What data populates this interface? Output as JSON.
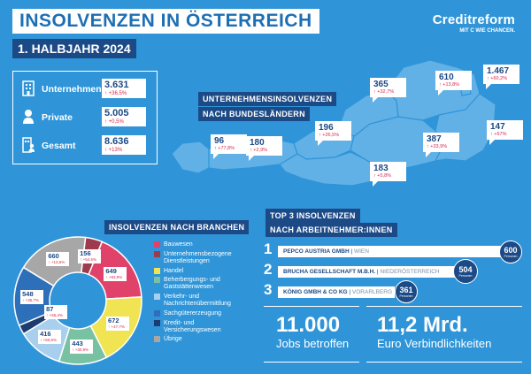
{
  "header": {
    "title": "INSOLVENZEN IN ÖSTERREICH",
    "subtitle": "1. HALBJAHR 2024"
  },
  "logo": {
    "name": "Creditreform",
    "tagline": "MIT C WIE CHANCEN."
  },
  "stats": [
    {
      "label": "Unternehmen",
      "value": "3.631",
      "change": "+36,5%",
      "icon": "building-icon"
    },
    {
      "label": "Private",
      "value": "5.005",
      "change": "+0,5%",
      "icon": "person-icon"
    },
    {
      "label": "Gesamt",
      "value": "8.636",
      "change": "+13%",
      "icon": "building-person-icon"
    }
  ],
  "map": {
    "heading_line1": "UNTERNEHMENSINSOLVENZEN",
    "heading_line2": "NACH BUNDESLÄNDERN",
    "regions": [
      {
        "value": "96",
        "change": "+77,8%"
      },
      {
        "value": "180",
        "change": "+2,9%"
      },
      {
        "value": "196",
        "change": "+26,5%"
      },
      {
        "value": "365",
        "change": "+32,7%"
      },
      {
        "value": "610",
        "change": "+13,8%"
      },
      {
        "value": "1.467",
        "change": "+60,2%"
      },
      {
        "value": "147",
        "change": "+67%"
      },
      {
        "value": "387",
        "change": "+33,9%"
      },
      {
        "value": "183",
        "change": "+5,8%"
      }
    ]
  },
  "branchen": {
    "heading": "INSOLVENZEN NACH BRANCHEN",
    "legend": [
      {
        "label": "Bauwesen",
        "color": "#e0426a"
      },
      {
        "label": "Unternehmensbezogene Dienstleistungen",
        "color": "#9e3a4c"
      },
      {
        "label": "Handel",
        "color": "#f1e453"
      },
      {
        "label": "Beherbergungs- und Gaststättenwesen",
        "color": "#78c1a2"
      },
      {
        "label": "Verkehr- und Nachrichtenübermittlung",
        "color": "#a8cfee"
      },
      {
        "label": "Sachgütererzeugung",
        "color": "#2d6fb8"
      },
      {
        "label": "Kredit- und Versicherungswesen",
        "color": "#1c3d6e"
      },
      {
        "label": "Übrige",
        "color": "#a7a7a7"
      }
    ]
  },
  "chart_data": {
    "type": "pie",
    "categories": [
      "Bauwesen",
      "Unternehmensbezogene Dienstleistungen",
      "Handel",
      "Beherbergungs- und Gaststättenwesen",
      "Verkehr- und Nachrichtenübermittlung",
      "Sachgütererzeugung",
      "Kredit- und Versicherungswesen",
      "Übrige"
    ],
    "values": [
      649,
      156,
      672,
      443,
      416,
      548,
      87,
      660
    ],
    "changes": [
      "+83,9%",
      "+54,5%",
      "+47,7%",
      "+30,9%",
      "+60,6%",
      "+35,7%",
      "+55,4%",
      "+13,6%"
    ],
    "colors": [
      "#e0426a",
      "#9e3a4c",
      "#f1e453",
      "#78c1a2",
      "#a8cfee",
      "#2d6fb8",
      "#1c3d6e",
      "#a7a7a7"
    ]
  },
  "top3": {
    "heading_line1": "TOP 3 INSOLVENZEN",
    "heading_line2": "NACH ARBEITNEHMER:INNEN",
    "items": [
      {
        "rank": "1",
        "name": "PEPCO AUSTRIA GMBH",
        "region": "WIEN",
        "count": "600",
        "unit": "Personen"
      },
      {
        "rank": "2",
        "name": "BRUCHA GESELLSCHAFT M.B.H.",
        "region": "NIEDERÖSTERREICH",
        "count": "504",
        "unit": "Personen"
      },
      {
        "rank": "3",
        "name": "KÖNIG GMBH & CO KG",
        "region": "VORARLBERG",
        "count": "361",
        "unit": "Personen"
      }
    ]
  },
  "summary": [
    {
      "value": "11.000",
      "label": "Jobs betroffen"
    },
    {
      "value": "11,2 Mrd.",
      "label": "Euro Verbindlichkeiten"
    }
  ]
}
